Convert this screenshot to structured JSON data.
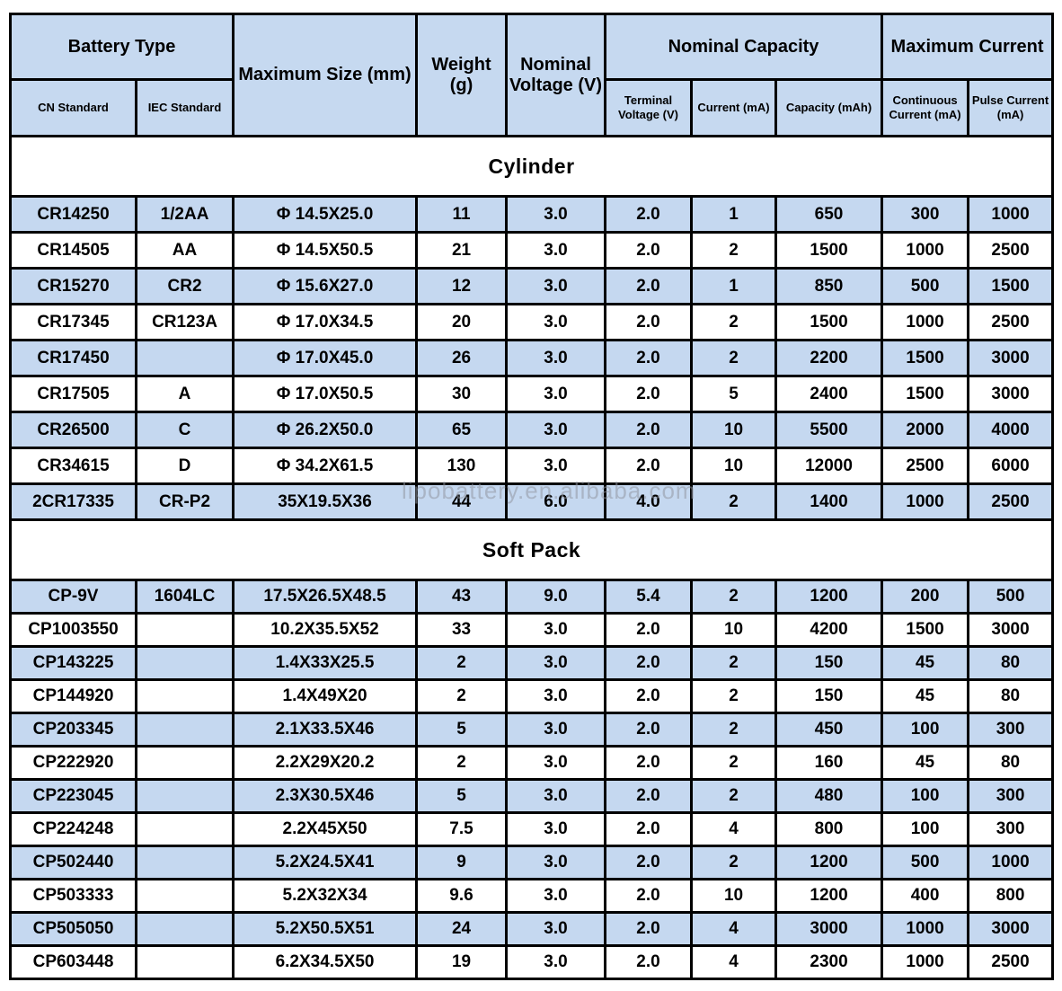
{
  "header": {
    "battery_type": "Battery Type",
    "cn_standard": "CN Standard",
    "iec_standard": "IEC Standard",
    "max_size": "Maximum Size (mm)",
    "weight": "Weight (g)",
    "nominal_voltage": "Nominal Voltage (V)",
    "nominal_capacity": "Nominal Capacity",
    "terminal_voltage": "Terminal Voltage (V)",
    "current": "Current (mA)",
    "capacity": "Capacity (mAh)",
    "maximum_current": "Maximum Current",
    "continuous_current": "Continuous Current (mA)",
    "pulse_current": "Pulse Current (mA)"
  },
  "watermark": "lipobattery.en.alibaba.com",
  "colors": {
    "header_bg": "#c6d9f0",
    "row_alt_bg": "#c5d8f0",
    "row_bg": "#ffffff",
    "border": "#000000"
  },
  "sections": [
    {
      "title": "Cylinder",
      "rows": [
        [
          "CR14250",
          "1/2AA",
          "Φ 14.5X25.0",
          "11",
          "3.0",
          "2.0",
          "1",
          "650",
          "300",
          "1000"
        ],
        [
          "CR14505",
          "AA",
          "Φ 14.5X50.5",
          "21",
          "3.0",
          "2.0",
          "2",
          "1500",
          "1000",
          "2500"
        ],
        [
          "CR15270",
          "CR2",
          "Φ 15.6X27.0",
          "12",
          "3.0",
          "2.0",
          "1",
          "850",
          "500",
          "1500"
        ],
        [
          "CR17345",
          "CR123A",
          "Φ 17.0X34.5",
          "20",
          "3.0",
          "2.0",
          "2",
          "1500",
          "1000",
          "2500"
        ],
        [
          "CR17450",
          "",
          "Φ 17.0X45.0",
          "26",
          "3.0",
          "2.0",
          "2",
          "2200",
          "1500",
          "3000"
        ],
        [
          "CR17505",
          "A",
          "Φ 17.0X50.5",
          "30",
          "3.0",
          "2.0",
          "5",
          "2400",
          "1500",
          "3000"
        ],
        [
          "CR26500",
          "C",
          "Φ 26.2X50.0",
          "65",
          "3.0",
          "2.0",
          "10",
          "5500",
          "2000",
          "4000"
        ],
        [
          "CR34615",
          "D",
          "Φ 34.2X61.5",
          "130",
          "3.0",
          "2.0",
          "10",
          "12000",
          "2500",
          "6000"
        ],
        [
          "2CR17335",
          "CR-P2",
          "35X19.5X36",
          "44",
          "6.0",
          "4.0",
          "2",
          "1400",
          "1000",
          "2500"
        ]
      ]
    },
    {
      "title": "Soft Pack",
      "rows": [
        [
          "CP-9V",
          "1604LC",
          "17.5X26.5X48.5",
          "43",
          "9.0",
          "5.4",
          "2",
          "1200",
          "200",
          "500"
        ],
        [
          "CP1003550",
          "",
          "10.2X35.5X52",
          "33",
          "3.0",
          "2.0",
          "10",
          "4200",
          "1500",
          "3000"
        ],
        [
          "CP143225",
          "",
          "1.4X33X25.5",
          "2",
          "3.0",
          "2.0",
          "2",
          "150",
          "45",
          "80"
        ],
        [
          "CP144920",
          "",
          "1.4X49X20",
          "2",
          "3.0",
          "2.0",
          "2",
          "150",
          "45",
          "80"
        ],
        [
          "CP203345",
          "",
          "2.1X33.5X46",
          "5",
          "3.0",
          "2.0",
          "2",
          "450",
          "100",
          "300"
        ],
        [
          "CP222920",
          "",
          "2.2X29X20.2",
          "2",
          "3.0",
          "2.0",
          "2",
          "160",
          "45",
          "80"
        ],
        [
          "CP223045",
          "",
          "2.3X30.5X46",
          "5",
          "3.0",
          "2.0",
          "2",
          "480",
          "100",
          "300"
        ],
        [
          "CP224248",
          "",
          "2.2X45X50",
          "7.5",
          "3.0",
          "2.0",
          "4",
          "800",
          "100",
          "300"
        ],
        [
          "CP502440",
          "",
          "5.2X24.5X41",
          "9",
          "3.0",
          "2.0",
          "2",
          "1200",
          "500",
          "1000"
        ],
        [
          "CP503333",
          "",
          "5.2X32X34",
          "9.6",
          "3.0",
          "2.0",
          "10",
          "1200",
          "400",
          "800"
        ],
        [
          "CP505050",
          "",
          "5.2X50.5X51",
          "24",
          "3.0",
          "2.0",
          "4",
          "3000",
          "1000",
          "3000"
        ],
        [
          "CP603448",
          "",
          "6.2X34.5X50",
          "19",
          "3.0",
          "2.0",
          "4",
          "2300",
          "1000",
          "2500"
        ]
      ]
    }
  ]
}
